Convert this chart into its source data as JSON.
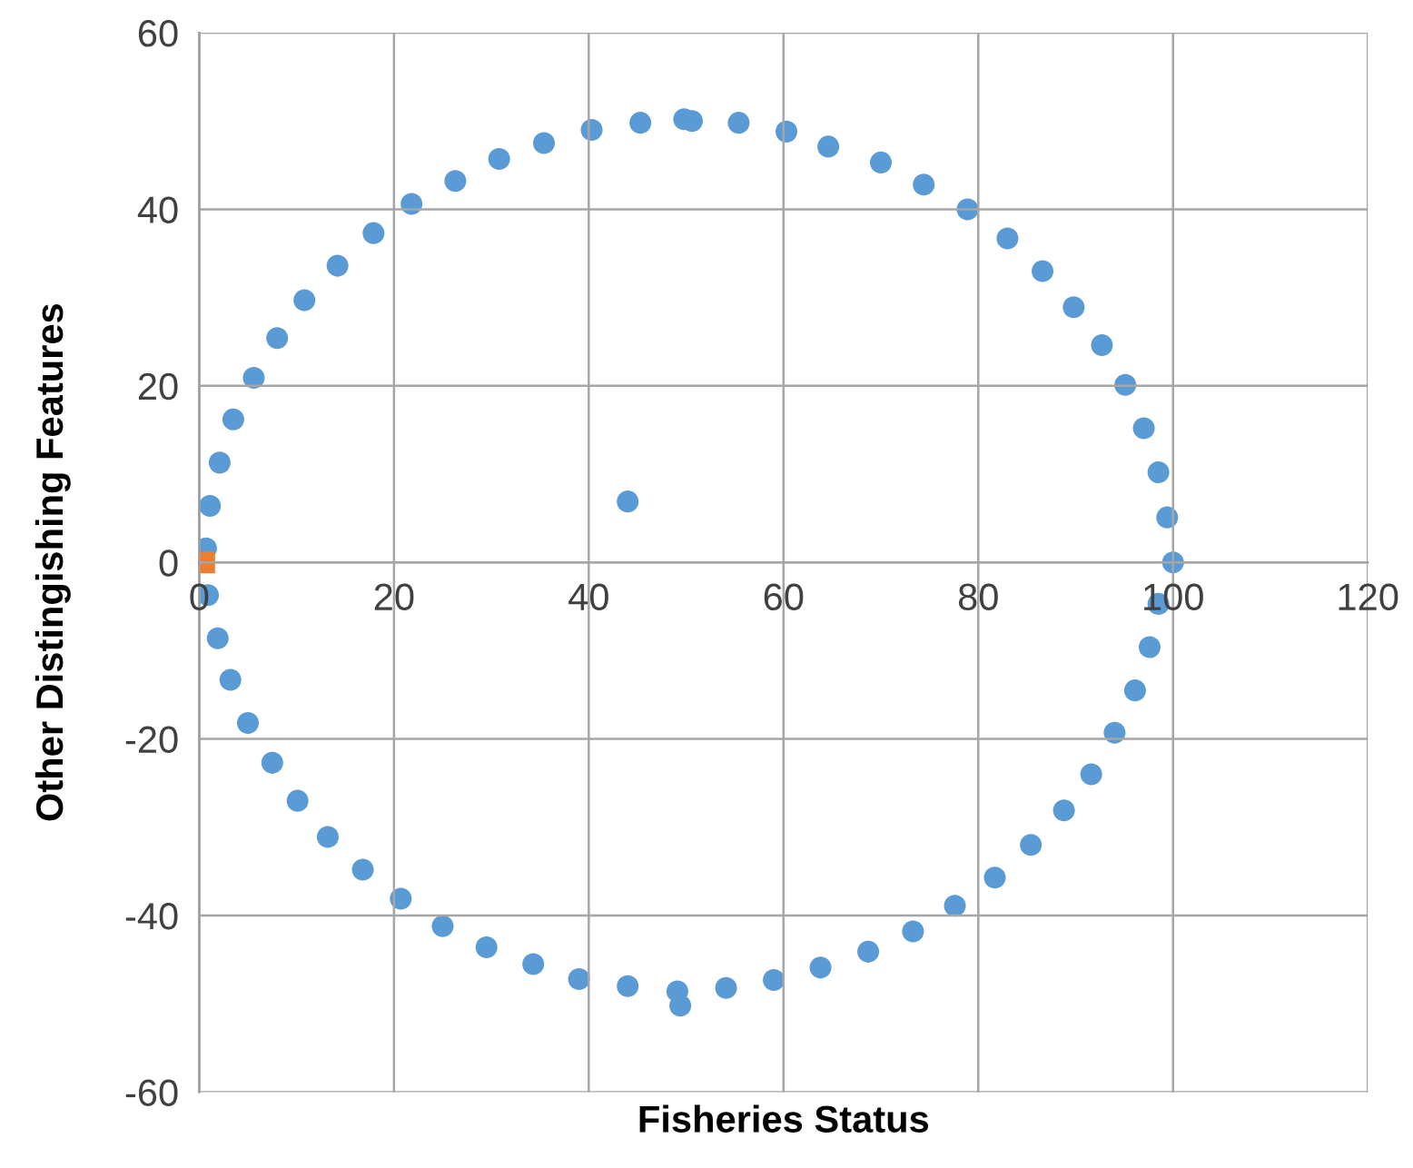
{
  "chart_data": {
    "type": "scatter",
    "xlabel": "Fisheries Status",
    "ylabel": "Other Distingishing Features",
    "xlim": [
      0,
      120
    ],
    "ylim": [
      -60,
      60
    ],
    "xticks": [
      0,
      20,
      40,
      60,
      80,
      100,
      120
    ],
    "yticks": [
      -60,
      -40,
      -20,
      0,
      20,
      40,
      60
    ],
    "grid": true,
    "marker": "circle",
    "series": [
      {
        "color": "#5b9bd5",
        "x": [
          0.7,
          1.1,
          0.9,
          2.1,
          3.5,
          5.6,
          8.0,
          10.8,
          14.2,
          17.9,
          21.8,
          26.3,
          30.8,
          35.4,
          40.3,
          45.3,
          49.8,
          50.6,
          55.4,
          60.3,
          64.6,
          70.0,
          74.4,
          78.9,
          83.0,
          86.6,
          89.8,
          92.7,
          95.1,
          97.0,
          98.5,
          99.4,
          100,
          98.5,
          97.6,
          96.1,
          94.0,
          91.6,
          88.8,
          85.4,
          81.7,
          77.6,
          73.3,
          68.7,
          63.8,
          59.0,
          54.1,
          49.1,
          49.4,
          44.0,
          39.0,
          34.3,
          29.5,
          25.0,
          20.7,
          16.8,
          13.2,
          10.1,
          7.5,
          5.0,
          3.2,
          1.9,
          44.0
        ],
        "values": [
          1.6,
          6.4,
          -3.7,
          11.3,
          16.2,
          20.9,
          25.4,
          29.7,
          33.6,
          37.3,
          40.6,
          43.2,
          45.7,
          47.5,
          49.0,
          49.8,
          50.2,
          50.0,
          49.8,
          48.8,
          47.1,
          45.3,
          42.8,
          40.0,
          36.7,
          33.0,
          28.9,
          24.6,
          20.1,
          15.2,
          10.2,
          5.1,
          0,
          -4.7,
          -9.6,
          -14.5,
          -19.3,
          -24.0,
          -28.1,
          -32.0,
          -35.7,
          -38.9,
          -41.8,
          -44.1,
          -45.9,
          -47.3,
          -48.2,
          -48.6,
          -50.2,
          -48.0,
          -47.2,
          -45.5,
          -43.6,
          -41.2,
          -38.1,
          -34.8,
          -31.1,
          -27.0,
          -22.7,
          -18.2,
          -13.3,
          -8.6,
          6.9
        ]
      },
      {
        "color": "#ed7d31",
        "marker": "square",
        "x": [
          0.5
        ],
        "values": [
          0
        ]
      }
    ]
  }
}
